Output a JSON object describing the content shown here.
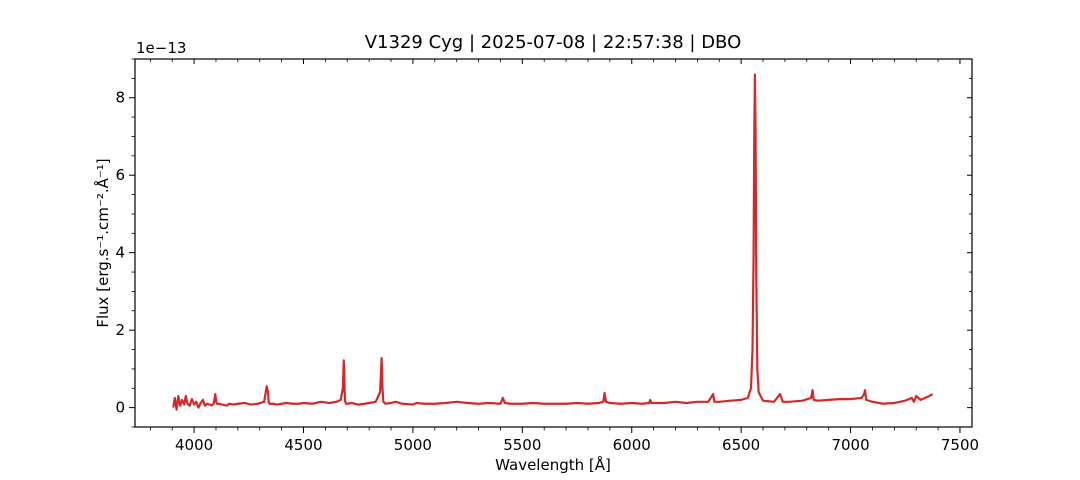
{
  "chart_data": {
    "type": "line",
    "title": "V1329 Cyg | 2025-07-08 | 22:57:38 | DBO",
    "xlabel": "Wavelength [Å]",
    "ylabel": "Flux [erg.s⁻¹.cm⁻².Å⁻¹]",
    "y_offset_text": "1e−13",
    "xlim": [
      3730,
      7555
    ],
    "ylim": [
      -0.5,
      9.0
    ],
    "x_ticks": [
      4000,
      4500,
      5000,
      5500,
      6000,
      6500,
      7000,
      7500
    ],
    "x_tick_labels": [
      "4000",
      "4500",
      "5000",
      "5500",
      "6000",
      "6500",
      "7000",
      "7500"
    ],
    "y_ticks": [
      0,
      2,
      4,
      6,
      8
    ],
    "y_tick_labels": [
      "0",
      "2",
      "4",
      "6",
      "8"
    ],
    "grid": false,
    "legend": "none",
    "series": [
      {
        "color": "#d62728",
        "x": [
          3905,
          3912,
          3920,
          3928,
          3936,
          3945,
          3955,
          3962,
          3970,
          3980,
          3990,
          4000,
          4010,
          4020,
          4030,
          4040,
          4050,
          4060,
          4070,
          4080,
          4090,
          4097,
          4101,
          4105,
          4115,
          4130,
          4150,
          4160,
          4180,
          4200,
          4230,
          4260,
          4290,
          4320,
          4332,
          4338,
          4341,
          4345,
          4360,
          4380,
          4400,
          4420,
          4450,
          4480,
          4500,
          4540,
          4580,
          4620,
          4650,
          4670,
          4680,
          4684,
          4686,
          4688,
          4690,
          4694,
          4700,
          4720,
          4750,
          4780,
          4800,
          4830,
          4850,
          4857,
          4861,
          4865,
          4875,
          4900,
          4922,
          4950,
          5000,
          5016,
          5050,
          5100,
          5150,
          5200,
          5250,
          5300,
          5350,
          5400,
          5411,
          5420,
          5450,
          5500,
          5550,
          5600,
          5650,
          5700,
          5750,
          5800,
          5850,
          5870,
          5876,
          5882,
          5900,
          5950,
          6000,
          6050,
          6080,
          6084,
          6090,
          6150,
          6200,
          6250,
          6300,
          6350,
          6372,
          6378,
          6400,
          6450,
          6500,
          6530,
          6545,
          6552,
          6557,
          6560,
          6563,
          6566,
          6569,
          6574,
          6580,
          6600,
          6650,
          6678,
          6690,
          6720,
          6780,
          6820,
          6826,
          6832,
          6850,
          6900,
          6950,
          7000,
          7050,
          7062,
          7066,
          7072,
          7100,
          7150,
          7200,
          7250,
          7280,
          7290,
          7300,
          7320,
          7340,
          7360,
          7375
        ],
        "y": [
          0.0,
          0.25,
          -0.05,
          0.3,
          0.05,
          0.2,
          0.08,
          0.3,
          0.1,
          0.05,
          0.22,
          0.08,
          0.15,
          0.0,
          0.12,
          0.2,
          0.05,
          0.1,
          0.08,
          0.06,
          0.1,
          0.35,
          0.15,
          0.1,
          0.1,
          0.08,
          0.05,
          0.1,
          0.08,
          0.1,
          0.12,
          0.08,
          0.1,
          0.15,
          0.55,
          0.4,
          0.15,
          0.1,
          0.1,
          0.08,
          0.1,
          0.12,
          0.1,
          0.1,
          0.12,
          0.1,
          0.15,
          0.12,
          0.15,
          0.2,
          0.5,
          1.22,
          1.0,
          0.4,
          0.18,
          0.1,
          0.1,
          0.12,
          0.08,
          0.1,
          0.12,
          0.15,
          0.4,
          1.28,
          0.5,
          0.15,
          0.1,
          0.12,
          0.15,
          0.1,
          0.08,
          0.12,
          0.1,
          0.1,
          0.12,
          0.15,
          0.12,
          0.1,
          0.12,
          0.1,
          0.25,
          0.12,
          0.1,
          0.1,
          0.12,
          0.1,
          0.1,
          0.1,
          0.12,
          0.1,
          0.12,
          0.15,
          0.38,
          0.15,
          0.12,
          0.1,
          0.12,
          0.1,
          0.12,
          0.2,
          0.12,
          0.12,
          0.15,
          0.12,
          0.15,
          0.15,
          0.35,
          0.15,
          0.15,
          0.18,
          0.2,
          0.25,
          0.5,
          1.5,
          4.0,
          7.0,
          8.6,
          7.0,
          3.5,
          1.0,
          0.4,
          0.18,
          0.15,
          0.35,
          0.15,
          0.15,
          0.18,
          0.25,
          0.45,
          0.2,
          0.18,
          0.2,
          0.22,
          0.22,
          0.25,
          0.35,
          0.45,
          0.2,
          0.15,
          0.1,
          0.12,
          0.18,
          0.25,
          0.15,
          0.3,
          0.2,
          0.25,
          0.3,
          0.35
        ]
      }
    ]
  }
}
